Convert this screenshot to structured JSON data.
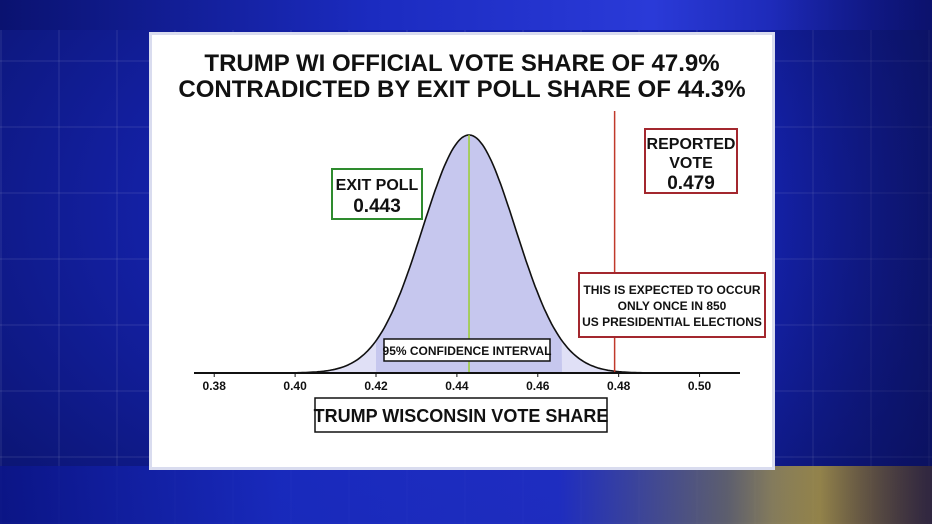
{
  "headline": {
    "line1": "TRUMP WI OFFICIAL VOTE SHARE OF 47.9%",
    "line2": "CONTRADICTED BY EXIT POLL SHARE OF 44.3%"
  },
  "chart_data": {
    "type": "area",
    "distribution": "normal",
    "mean": 0.443,
    "sd": 0.0115,
    "xlim": [
      0.375,
      0.51
    ],
    "xticks": [
      "0.38",
      "0.40",
      "0.42",
      "0.44",
      "0.46",
      "0.48",
      "0.50"
    ],
    "xlabel": "TRUMP WISCONSIN VOTE SHARE",
    "confidence_interval": {
      "label": "95% CONFIDENCE INTERVAL",
      "low": 0.42,
      "high": 0.466
    },
    "exit_poll": {
      "label": "EXIT POLL",
      "value": "0.443",
      "x": 0.443,
      "color": "#2e8b2e"
    },
    "reported_vote": {
      "label_line1": "REPORTED",
      "label_line2": "VOTE",
      "value": "0.479",
      "x": 0.479,
      "color": "#a3272e"
    },
    "note": {
      "line1": "THIS IS EXPECTED TO OCCUR",
      "line2": "ONLY ONCE IN 850",
      "line3": "US PRESIDENTIAL ELECTIONS"
    },
    "fill_color": "#c6c7ee"
  }
}
